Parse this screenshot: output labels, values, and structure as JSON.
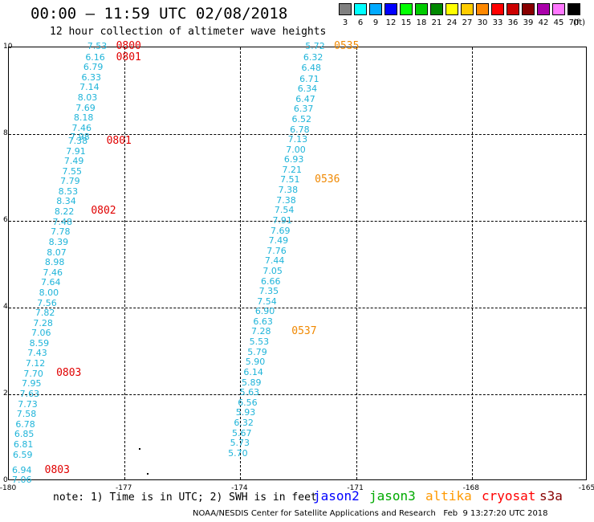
{
  "header": {
    "title": "00:00 – 11:59 UTC 02/08/2018",
    "subtitle": "12 hour collection of altimeter wave heights"
  },
  "legend": {
    "units": "(ft)",
    "bins": [
      {
        "label": "3",
        "color": "#808080"
      },
      {
        "label": "6",
        "color": "#00ffff"
      },
      {
        "label": "9",
        "color": "#00aaff"
      },
      {
        "label": "12",
        "color": "#0000ff"
      },
      {
        "label": "15",
        "color": "#00ff00"
      },
      {
        "label": "18",
        "color": "#00cc00"
      },
      {
        "label": "21",
        "color": "#008800"
      },
      {
        "label": "24",
        "color": "#ffff00"
      },
      {
        "label": "27",
        "color": "#ffcc00"
      },
      {
        "label": "30",
        "color": "#ff8800"
      },
      {
        "label": "33",
        "color": "#ff0000"
      },
      {
        "label": "36",
        "color": "#cc0000"
      },
      {
        "label": "39",
        "color": "#880000"
      },
      {
        "label": "42",
        "color": "#aa00aa"
      },
      {
        "label": "45",
        "color": "#ff77ff"
      },
      {
        "label": "70",
        "color": "#000000"
      }
    ]
  },
  "map": {
    "lon_range": [
      -180,
      -165
    ],
    "lat_range": [
      0,
      10
    ],
    "x_ticks": [
      "-180",
      "-177",
      "-174",
      "-171",
      "-168",
      "-165"
    ],
    "y_ticks": [
      "0",
      "2",
      "4",
      "6",
      "8",
      "10"
    ],
    "value_color": "#1fb4d9",
    "tracks": [
      {
        "points": [
          {
            "lon": -178.05,
            "lat": 10.0,
            "v": "7.53"
          },
          {
            "lon": -178.1,
            "lat": 9.75,
            "v": "6.16"
          },
          {
            "lon": -178.15,
            "lat": 9.52,
            "v": "6.79"
          },
          {
            "lon": -178.2,
            "lat": 9.28,
            "v": "6.33"
          },
          {
            "lon": -178.25,
            "lat": 9.05,
            "v": "7.14"
          },
          {
            "lon": -178.3,
            "lat": 8.82,
            "v": "8.03"
          },
          {
            "lon": -178.35,
            "lat": 8.58,
            "v": "7.69"
          },
          {
            "lon": -178.4,
            "lat": 8.35,
            "v": "8.18"
          },
          {
            "lon": -178.45,
            "lat": 8.12,
            "v": "7.46"
          },
          {
            "lon": -178.5,
            "lat": 7.9,
            "v": "7.98"
          },
          {
            "lon": -178.55,
            "lat": 7.82,
            "v": "7.38"
          },
          {
            "lon": -178.6,
            "lat": 7.58,
            "v": "7.91"
          },
          {
            "lon": -178.65,
            "lat": 7.35,
            "v": "7.49"
          },
          {
            "lon": -178.7,
            "lat": 7.12,
            "v": "7.55"
          },
          {
            "lon": -178.75,
            "lat": 6.88,
            "v": "7.79"
          },
          {
            "lon": -178.8,
            "lat": 6.65,
            "v": "8.53"
          },
          {
            "lon": -178.85,
            "lat": 6.42,
            "v": "8.34"
          },
          {
            "lon": -178.9,
            "lat": 6.18,
            "v": "8.22"
          },
          {
            "lon": -178.95,
            "lat": 5.95,
            "v": "7.48"
          },
          {
            "lon": -179.0,
            "lat": 5.72,
            "v": "7.78"
          },
          {
            "lon": -179.05,
            "lat": 5.48,
            "v": "8.39"
          },
          {
            "lon": -179.1,
            "lat": 5.25,
            "v": "8.07"
          },
          {
            "lon": -179.15,
            "lat": 5.02,
            "v": "8.98"
          },
          {
            "lon": -179.2,
            "lat": 4.78,
            "v": "7.46"
          },
          {
            "lon": -179.25,
            "lat": 4.55,
            "v": "7.64"
          },
          {
            "lon": -179.3,
            "lat": 4.32,
            "v": "8.00"
          },
          {
            "lon": -179.35,
            "lat": 4.08,
            "v": "7.56"
          },
          {
            "lon": -179.4,
            "lat": 3.85,
            "v": "7.82"
          },
          {
            "lon": -179.45,
            "lat": 3.62,
            "v": "7.28"
          },
          {
            "lon": -179.5,
            "lat": 3.38,
            "v": "7.06"
          },
          {
            "lon": -179.55,
            "lat": 3.15,
            "v": "8.59"
          },
          {
            "lon": -179.6,
            "lat": 2.92,
            "v": "7.43"
          },
          {
            "lon": -179.65,
            "lat": 2.68,
            "v": "7.12"
          },
          {
            "lon": -179.7,
            "lat": 2.45,
            "v": "7.70"
          },
          {
            "lon": -179.75,
            "lat": 2.22,
            "v": "7.95"
          },
          {
            "lon": -179.8,
            "lat": 1.98,
            "v": "7.63"
          },
          {
            "lon": -179.85,
            "lat": 1.75,
            "v": "7.73"
          },
          {
            "lon": -179.88,
            "lat": 1.52,
            "v": "7.58"
          },
          {
            "lon": -179.91,
            "lat": 1.28,
            "v": "6.78"
          },
          {
            "lon": -179.94,
            "lat": 1.05,
            "v": "6.85"
          },
          {
            "lon": -179.96,
            "lat": 0.82,
            "v": "6.81"
          },
          {
            "lon": -179.98,
            "lat": 0.58,
            "v": "6.59"
          },
          {
            "lon": -180.0,
            "lat": 0.22,
            "v": "6.94"
          },
          {
            "lon": -180.0,
            "lat": 0.0,
            "v": "7.06"
          }
        ]
      },
      {
        "points": [
          {
            "lon": -172.4,
            "lat": 10.0,
            "v": "5.72"
          },
          {
            "lon": -172.45,
            "lat": 9.75,
            "v": "6.32"
          },
          {
            "lon": -172.5,
            "lat": 9.5,
            "v": "6.48"
          },
          {
            "lon": -172.55,
            "lat": 9.25,
            "v": "6.71"
          },
          {
            "lon": -172.6,
            "lat": 9.02,
            "v": "6.34"
          },
          {
            "lon": -172.65,
            "lat": 8.78,
            "v": "6.47"
          },
          {
            "lon": -172.7,
            "lat": 8.55,
            "v": "6.37"
          },
          {
            "lon": -172.75,
            "lat": 8.32,
            "v": "6.52"
          },
          {
            "lon": -172.8,
            "lat": 8.08,
            "v": "6.78"
          },
          {
            "lon": -172.85,
            "lat": 7.85,
            "v": "7.13"
          },
          {
            "lon": -172.9,
            "lat": 7.62,
            "v": "7.00"
          },
          {
            "lon": -172.95,
            "lat": 7.38,
            "v": "6.93"
          },
          {
            "lon": -173.0,
            "lat": 7.15,
            "v": "7.21"
          },
          {
            "lon": -173.05,
            "lat": 6.92,
            "v": "7.51"
          },
          {
            "lon": -173.1,
            "lat": 6.68,
            "v": "7.38"
          },
          {
            "lon": -173.15,
            "lat": 6.45,
            "v": "7.38"
          },
          {
            "lon": -173.2,
            "lat": 6.22,
            "v": "7.54"
          },
          {
            "lon": -173.25,
            "lat": 5.98,
            "v": "7.91"
          },
          {
            "lon": -173.3,
            "lat": 5.75,
            "v": "7.69"
          },
          {
            "lon": -173.35,
            "lat": 5.52,
            "v": "7.49"
          },
          {
            "lon": -173.4,
            "lat": 5.28,
            "v": "7.76"
          },
          {
            "lon": -173.45,
            "lat": 5.05,
            "v": "7.44"
          },
          {
            "lon": -173.5,
            "lat": 4.82,
            "v": "7.05"
          },
          {
            "lon": -173.55,
            "lat": 4.58,
            "v": "6.66"
          },
          {
            "lon": -173.6,
            "lat": 4.35,
            "v": "7.35"
          },
          {
            "lon": -173.65,
            "lat": 4.12,
            "v": "7.54"
          },
          {
            "lon": -173.7,
            "lat": 3.88,
            "v": "6.90"
          },
          {
            "lon": -173.75,
            "lat": 3.65,
            "v": "6.63"
          },
          {
            "lon": -173.8,
            "lat": 3.42,
            "v": "7.28"
          },
          {
            "lon": -173.85,
            "lat": 3.18,
            "v": "5.53"
          },
          {
            "lon": -173.9,
            "lat": 2.95,
            "v": "5.79"
          },
          {
            "lon": -173.95,
            "lat": 2.72,
            "v": "5.90"
          },
          {
            "lon": -174.0,
            "lat": 2.48,
            "v": "6.14"
          },
          {
            "lon": -174.05,
            "lat": 2.25,
            "v": "5.89"
          },
          {
            "lon": -174.1,
            "lat": 2.02,
            "v": "5.63"
          },
          {
            "lon": -174.15,
            "lat": 1.78,
            "v": "6.56"
          },
          {
            "lon": -174.2,
            "lat": 1.55,
            "v": "5.93"
          },
          {
            "lon": -174.25,
            "lat": 1.32,
            "v": "6.32"
          },
          {
            "lon": -174.3,
            "lat": 1.08,
            "v": "5.67"
          },
          {
            "lon": -174.35,
            "lat": 0.85,
            "v": "5.73"
          },
          {
            "lon": -174.4,
            "lat": 0.62,
            "v": "5.70"
          }
        ]
      }
    ],
    "time_labels": [
      {
        "lon": -177.2,
        "lat": 10.0,
        "t": "0800",
        "color": "#e00000"
      },
      {
        "lon": -177.2,
        "lat": 9.75,
        "t": "0801",
        "color": "#e00000"
      },
      {
        "lon": -177.45,
        "lat": 7.82,
        "t": "0801",
        "color": "#e00000"
      },
      {
        "lon": -177.85,
        "lat": 6.2,
        "t": "0802",
        "color": "#e00000"
      },
      {
        "lon": -178.75,
        "lat": 2.47,
        "t": "0803",
        "color": "#e00000"
      },
      {
        "lon": -179.05,
        "lat": 0.22,
        "t": "0803",
        "color": "#e00000"
      },
      {
        "lon": -171.55,
        "lat": 10.0,
        "t": "0535",
        "color": "#f08800"
      },
      {
        "lon": -172.05,
        "lat": 6.92,
        "t": "0536",
        "color": "#f08800"
      },
      {
        "lon": -172.65,
        "lat": 3.42,
        "t": "0537",
        "color": "#f08800"
      }
    ],
    "dots": [
      {
        "lon": -176.6,
        "lat": 0.75
      },
      {
        "lon": -176.4,
        "lat": 0.17
      }
    ]
  },
  "footer": {
    "note": "note: 1) Time is in UTC; 2) SWH is in feet",
    "satellites": [
      {
        "name": "jason2",
        "color": "#0000ff"
      },
      {
        "name": "jason3",
        "color": "#00aa00"
      },
      {
        "name": "altika",
        "color": "#ff9900"
      },
      {
        "name": "cryosat",
        "color": "#ff0000"
      },
      {
        "name": "s3a",
        "color": "#880000"
      }
    ],
    "credit": "NOAA/NESDIS Center for Satellite Applications and Research   Feb  9 13:27:20 UTC 2018"
  }
}
